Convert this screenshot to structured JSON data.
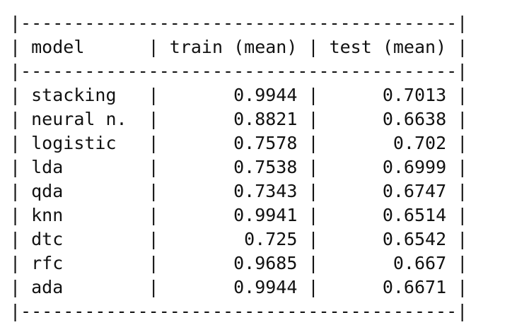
{
  "table": {
    "columns": [
      "model",
      "train (mean)",
      "test (mean)"
    ],
    "rows": [
      {
        "model": "stacking",
        "train": "0.9944",
        "test": "0.7013"
      },
      {
        "model": "neural n.",
        "train": "0.8821",
        "test": "0.6638"
      },
      {
        "model": "logistic",
        "train": "0.7578",
        "test": "0.702"
      },
      {
        "model": "lda",
        "train": "0.7538",
        "test": "0.6999"
      },
      {
        "model": "qda",
        "train": "0.7343",
        "test": "0.6747"
      },
      {
        "model": "knn",
        "train": "0.9941",
        "test": "0.6514"
      },
      {
        "model": "dtc",
        "train": "0.725",
        "test": "0.6542"
      },
      {
        "model": "rfc",
        "train": "0.9685",
        "test": "0.667"
      },
      {
        "model": "ada",
        "train": "0.9944",
        "test": "0.6671"
      }
    ]
  }
}
